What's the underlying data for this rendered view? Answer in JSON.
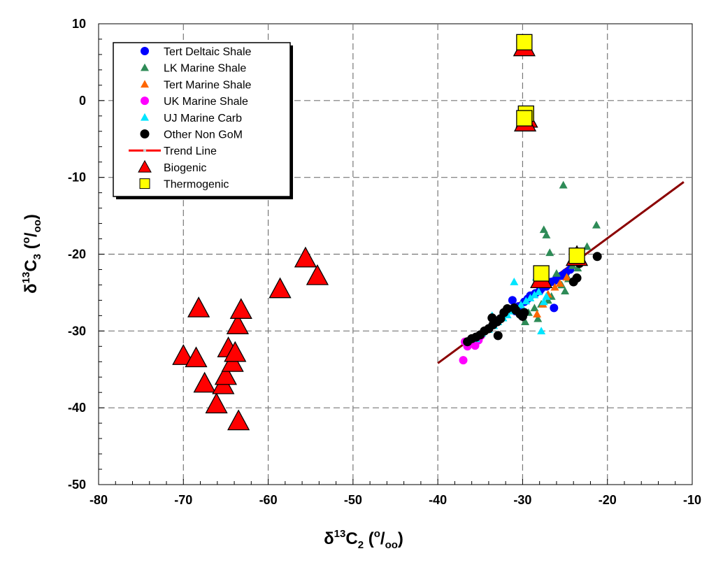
{
  "chart_data": {
    "type": "scatter",
    "title": "",
    "xlabel": {
      "base": "δ",
      "sup": "13",
      "main": "C",
      "sub": "2",
      "unit_open": " (",
      "unit_sup": "o",
      "unit_slash": "/",
      "unit_sub": "oo",
      "unit_close": ")"
    },
    "ylabel": {
      "base": "δ",
      "sup": "13",
      "main": "C",
      "sub": "3",
      "unit_open": " (",
      "unit_sup": "o",
      "unit_slash": "/",
      "unit_sub": "oo",
      "unit_close": ")"
    },
    "xlim": [
      -80,
      -10
    ],
    "ylim": [
      -50,
      10
    ],
    "x_ticks": [
      -80,
      -70,
      -60,
      -50,
      -40,
      -30,
      -20,
      -10
    ],
    "y_ticks": [
      -50,
      -40,
      -30,
      -20,
      -10,
      0,
      10
    ],
    "x_tick_labels": [
      "-80",
      "-70",
      "-60",
      "-50",
      "-40",
      "-30",
      "-20",
      "-10"
    ],
    "y_tick_labels": [
      "-50",
      "-40",
      "-30",
      "-20",
      "-10",
      "0",
      "10"
    ],
    "grid": true,
    "legend_position": "top-left",
    "legend": [
      {
        "label": "Tert Deltaic Shale",
        "marker": "circle",
        "color": "#0000ff"
      },
      {
        "label": "LK Marine Shale",
        "marker": "triangle",
        "color": "#2e8b57"
      },
      {
        "label": "Tert Marine Shale",
        "marker": "triangle",
        "color": "#ff6600"
      },
      {
        "label": "UK Marine Shale",
        "marker": "circle",
        "color": "#ff00ff"
      },
      {
        "label": "UJ Marine Carb",
        "marker": "triangle",
        "color": "#00e5ff"
      },
      {
        "label": "Other Non GoM",
        "marker": "circle",
        "color": "#000000"
      },
      {
        "label": "Trend Line",
        "marker": "line",
        "color": "#ff0000"
      },
      {
        "label": "Biogenic",
        "marker": "big-triangle",
        "color": "#ff0000"
      },
      {
        "label": "Thermogenic",
        "marker": "square",
        "color": "#ffff00"
      }
    ],
    "trend_line": {
      "x": [
        -40,
        -11
      ],
      "y": [
        -34.2,
        -10.6
      ],
      "color": "#8b0000"
    },
    "series": [
      {
        "name": "Tert Deltaic Shale",
        "marker": "circle",
        "color": "#0000ff",
        "x": [
          -31.2,
          -30.5,
          -29.8,
          -29.1,
          -28.5,
          -27.8,
          -27.2,
          -26.6,
          -26.0,
          -25.4,
          -24.9,
          -24.4,
          -30.9,
          -29.4,
          -28.0,
          -26.3,
          -25.0,
          -26.3
        ],
        "y": [
          -26.0,
          -26.8,
          -26.2,
          -25.4,
          -25.1,
          -24.5,
          -24.2,
          -23.6,
          -23.2,
          -22.8,
          -22.4,
          -22.0,
          -27.4,
          -25.8,
          -24.8,
          -23.5,
          -22.6,
          -27.0
        ]
      },
      {
        "name": "LK Marine Shale",
        "marker": "triangle",
        "color": "#2e8b57",
        "x": [
          -25.2,
          -21.3,
          -27.5,
          -27.2,
          -26.8,
          -24.1,
          -22.4,
          -26.0,
          -25.4,
          -25.0,
          -26.6,
          -27.8,
          -28.6,
          -29.3,
          -30.0,
          -24.6,
          -23.5,
          -29.7,
          -28.2,
          -27.0
        ],
        "y": [
          -11.0,
          -16.2,
          -16.8,
          -17.5,
          -19.8,
          -21.5,
          -19.0,
          -22.5,
          -24.0,
          -24.8,
          -25.5,
          -26.5,
          -27.0,
          -27.6,
          -28.0,
          -23.2,
          -21.8,
          -28.8,
          -28.4,
          -26.0
        ]
      },
      {
        "name": "Tert Marine Shale",
        "marker": "triangle",
        "color": "#ff6600",
        "x": [
          -28.3,
          -27.0,
          -26.2,
          -25.6,
          -24.8,
          -27.6
        ],
        "y": [
          -27.8,
          -25.2,
          -24.3,
          -23.8,
          -23.0,
          -26.5
        ]
      },
      {
        "name": "UK Marine Shale",
        "marker": "circle",
        "color": "#ff00ff",
        "x": [
          -37.0,
          -36.8,
          -36.1,
          -35.6,
          -35.2,
          -34.9,
          -36.5
        ],
        "y": [
          -33.8,
          -31.4,
          -31.6,
          -31.9,
          -31.2,
          -30.6,
          -32.0
        ]
      },
      {
        "name": "UJ Marine Carb",
        "marker": "triangle",
        "color": "#00e5ff",
        "x": [
          -35.5,
          -34.8,
          -34.0,
          -33.4,
          -32.9,
          -32.3,
          -31.8,
          -31.2,
          -30.7,
          -30.2,
          -29.6,
          -29.1,
          -28.6,
          -28.1,
          -27.5,
          -27.2,
          -31.0,
          -28.4,
          -27.8,
          -33.6
        ],
        "y": [
          -31.0,
          -30.3,
          -29.8,
          -29.3,
          -28.8,
          -28.3,
          -27.9,
          -27.4,
          -27.0,
          -26.6,
          -26.1,
          -25.7,
          -25.3,
          -24.9,
          -26.2,
          -25.5,
          -23.6,
          -23.0,
          -30.0,
          -28.0
        ]
      },
      {
        "name": "Other Non GoM",
        "marker": "circle",
        "color": "#000000",
        "x": [
          -36.5,
          -36.0,
          -35.5,
          -35.0,
          -34.5,
          -34.0,
          -33.5,
          -33.0,
          -32.6,
          -32.2,
          -31.8,
          -31.0,
          -30.8,
          -30.3,
          -30.0,
          -29.8,
          -21.2,
          -23.3,
          -23.6,
          -24.0,
          -32.9,
          -33.6
        ],
        "y": [
          -31.4,
          -31.0,
          -30.8,
          -30.5,
          -30.0,
          -29.7,
          -29.2,
          -28.8,
          -28.4,
          -27.6,
          -27.1,
          -27.0,
          -27.3,
          -27.8,
          -28.1,
          -27.6,
          -20.3,
          -21.2,
          -23.1,
          -23.6,
          -30.6,
          -28.3
        ]
      },
      {
        "name": "Biogenic",
        "marker": "big-triangle",
        "color": "#ff0000",
        "x": [
          -70.0,
          -68.5,
          -68.2,
          -67.5,
          -66.1,
          -65.3,
          -65.0,
          -64.7,
          -64.2,
          -63.9,
          -63.6,
          -63.2,
          -63.5,
          -58.6,
          -55.6,
          -54.2,
          -29.8,
          -29.5,
          -29.7,
          -27.8,
          -23.6
        ],
        "y": [
          -33.2,
          -33.5,
          -27.0,
          -36.8,
          -39.5,
          -37.0,
          -35.8,
          -32.2,
          -34.1,
          -32.8,
          -29.2,
          -27.2,
          -41.7,
          -24.5,
          -20.5,
          -22.8,
          7.0,
          -2.3,
          -2.8,
          -23.2,
          -20.3
        ]
      },
      {
        "name": "Thermogenic",
        "marker": "square",
        "color": "#ffff00",
        "x": [
          -29.8,
          -29.6,
          -29.8,
          -27.8,
          -23.6
        ],
        "y": [
          7.6,
          -1.7,
          -2.3,
          -22.5,
          -20.2
        ]
      }
    ]
  }
}
